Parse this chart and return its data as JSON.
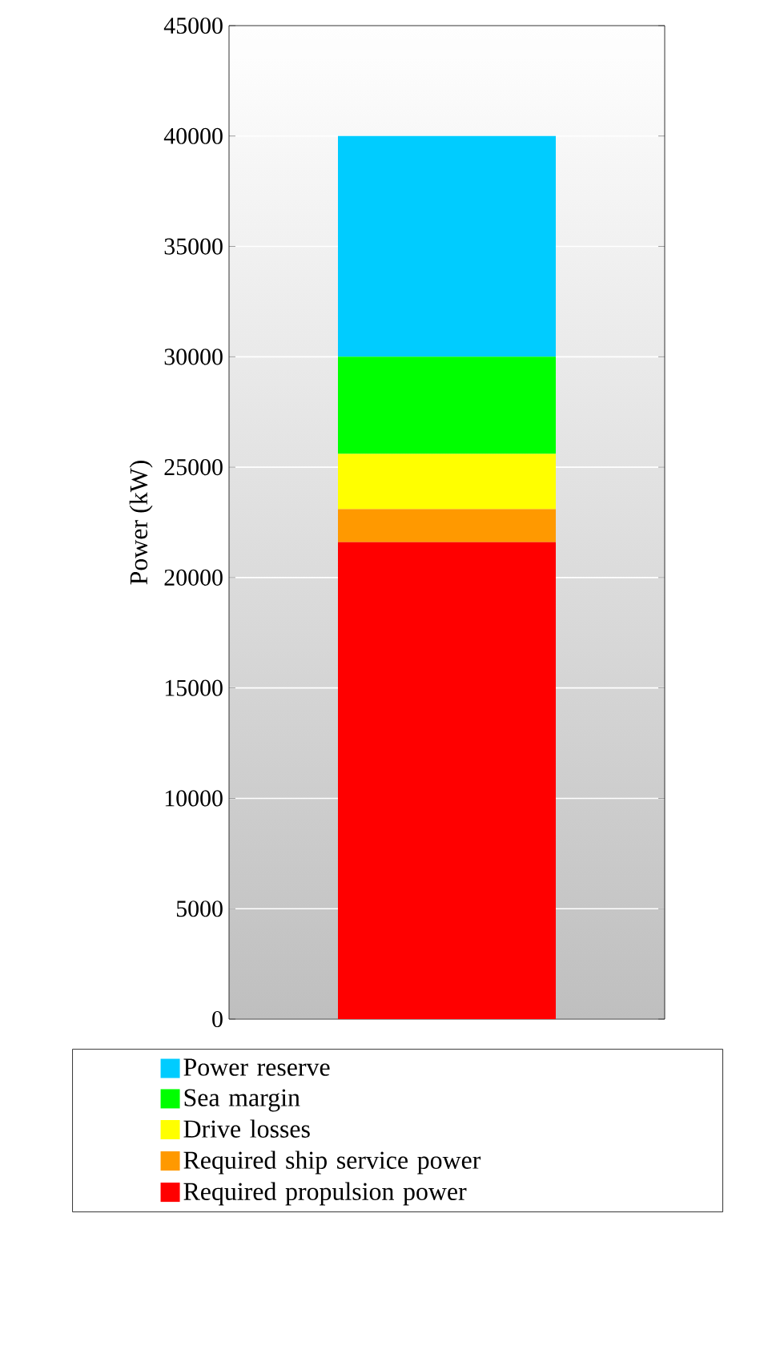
{
  "chart_data": {
    "type": "bar",
    "stacked": true,
    "ylabel": "Power (kW)",
    "categories": [
      null
    ],
    "series": [
      {
        "name": "Required propulsion power",
        "color": "#ff0000",
        "values": [
          21600
        ]
      },
      {
        "name": "Required ship service power",
        "color": "#ff9900",
        "values": [
          1500
        ]
      },
      {
        "name": "Drive losses",
        "color": "#ffff00",
        "values": [
          2500
        ]
      },
      {
        "name": "Sea margin",
        "color": "#00ff00",
        "values": [
          4400
        ]
      },
      {
        "name": "Power reserve",
        "color": "#00ccff",
        "values": [
          10000
        ]
      }
    ],
    "ylim": [
      0,
      45000
    ],
    "yticks": [
      0,
      5000,
      10000,
      15000,
      20000,
      25000,
      30000,
      35000,
      40000,
      45000
    ],
    "grid": "y",
    "legend": "bottom"
  }
}
